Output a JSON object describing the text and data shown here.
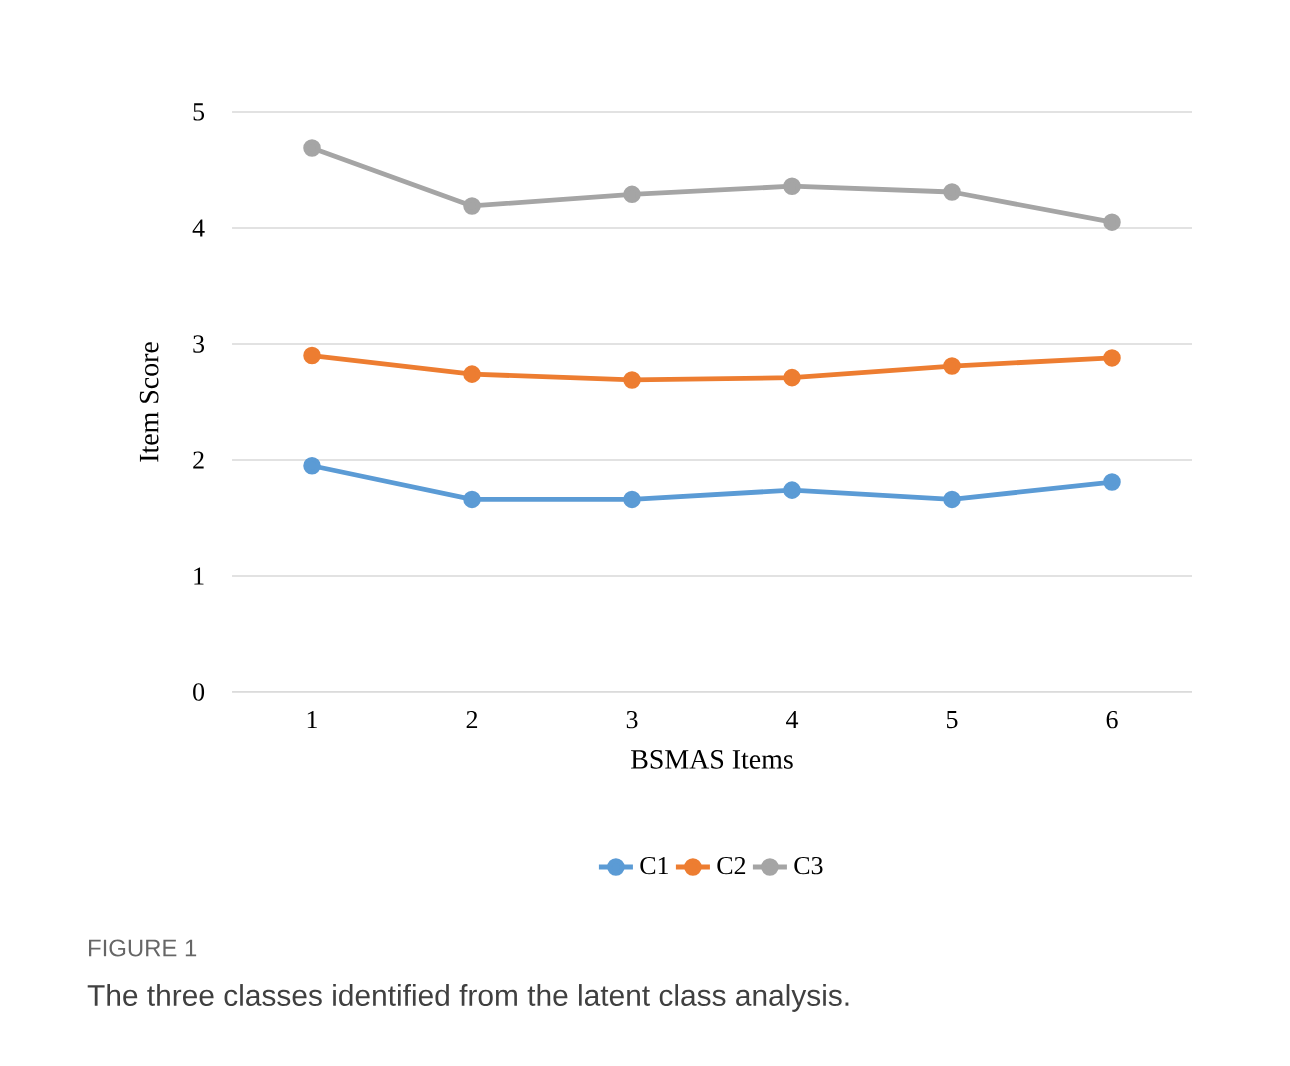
{
  "chart_data": {
    "type": "line",
    "xlabel": "BSMAS Items",
    "ylabel": "Item Score",
    "categories": [
      "1",
      "2",
      "3",
      "4",
      "5",
      "6"
    ],
    "series": [
      {
        "name": "C1",
        "color": "#5b9bd5",
        "values": [
          1.95,
          1.66,
          1.66,
          1.74,
          1.66,
          1.81
        ]
      },
      {
        "name": "C2",
        "color": "#ed7d31",
        "values": [
          2.9,
          2.74,
          2.69,
          2.71,
          2.81,
          2.88
        ]
      },
      {
        "name": "C3",
        "color": "#a5a5a5",
        "values": [
          4.69,
          4.19,
          4.29,
          4.36,
          4.31,
          4.05
        ]
      }
    ],
    "ylim": [
      0,
      5
    ],
    "yticks": [
      0,
      1,
      2,
      3,
      4,
      5
    ],
    "grid": "y",
    "legend": "bottom",
    "marker": "circle",
    "line_style": "solid",
    "annotations": [
      "FIGURE 1",
      "The three classes identified from the latent class analysis."
    ]
  }
}
